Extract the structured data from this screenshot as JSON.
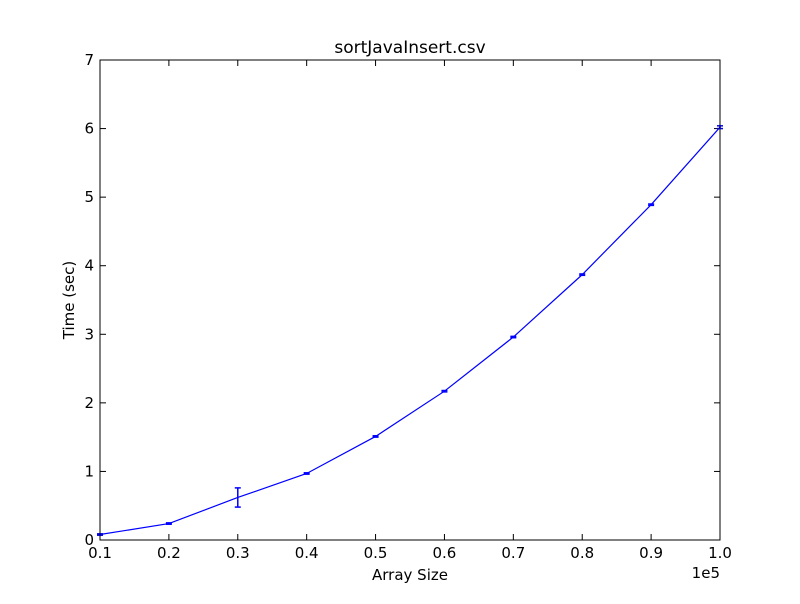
{
  "chart_data": {
    "type": "line",
    "title": "sortJavaInsert.csv",
    "xlabel": "Array Size",
    "ylabel": "Time (sec)",
    "x_offset_label": "1e5",
    "xlim": [
      0.1,
      1.0
    ],
    "ylim": [
      0,
      7
    ],
    "x_ticks": [
      "0.1",
      "0.2",
      "0.3",
      "0.4",
      "0.5",
      "0.6",
      "0.7",
      "0.8",
      "0.9",
      "1.0"
    ],
    "y_ticks": [
      "0",
      "1",
      "2",
      "3",
      "4",
      "5",
      "6",
      "7"
    ],
    "grid": false,
    "series": [
      {
        "color": "#0000ff",
        "x": [
          0.1,
          0.2,
          0.3,
          0.4,
          0.5,
          0.6,
          0.7,
          0.8,
          0.9,
          1.0
        ],
        "y": [
          0.08,
          0.24,
          0.62,
          0.97,
          1.51,
          2.17,
          2.96,
          3.87,
          4.89,
          6.02
        ],
        "yerr": [
          0.01,
          0.01,
          0.14,
          0.01,
          0.01,
          0.01,
          0.01,
          0.01,
          0.01,
          0.02
        ]
      }
    ]
  }
}
